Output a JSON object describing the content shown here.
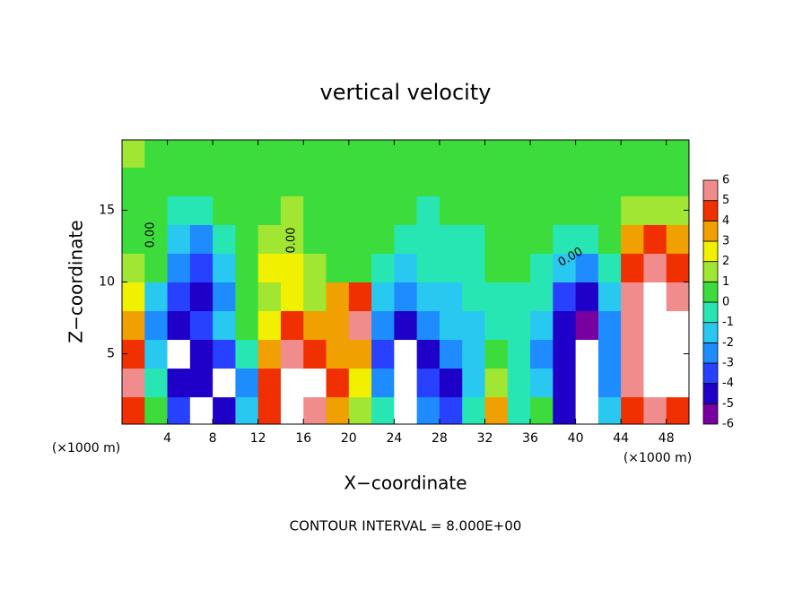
{
  "chart_data": {
    "type": "contour",
    "title": "vertical velocity",
    "xlabel": "X−coordinate",
    "ylabel": "Z−coordinate",
    "x_unit_label": "(×1000 m)",
    "footer": "CONTOUR INTERVAL = 8.000E+00",
    "contour_label": "0.00",
    "x": [
      1,
      3,
      5,
      7,
      9,
      11,
      13,
      15,
      17,
      19,
      21,
      23,
      25,
      27,
      29,
      31,
      33,
      35,
      37,
      39,
      41,
      43,
      45,
      47,
      49
    ],
    "y": [
      1,
      3,
      5,
      7,
      9,
      11,
      13,
      15,
      17,
      19
    ],
    "z": [
      [
        4,
        0,
        -4,
        -7,
        -5,
        -2,
        4,
        7,
        5,
        3,
        1,
        -1,
        -7,
        -3,
        -4,
        -1,
        3,
        -1,
        0,
        -5,
        -7,
        -2,
        4,
        5,
        4
      ],
      [
        5,
        -1,
        -5,
        -5,
        -7,
        -3,
        4,
        7,
        7,
        4,
        2,
        -3,
        -7,
        -4,
        -5,
        -2,
        1,
        -1,
        -2,
        -5,
        -7,
        -3,
        5,
        7,
        7
      ],
      [
        4,
        -2,
        -7,
        -5,
        -4,
        -1,
        3,
        5.5,
        4,
        3,
        3,
        -4,
        -7,
        -5,
        -3,
        -2,
        0,
        -1,
        -3,
        -5,
        -7,
        -3,
        5,
        7,
        7
      ],
      [
        3,
        -3,
        -5,
        -4,
        -2,
        0,
        2,
        4,
        3,
        3,
        5,
        -3,
        -5,
        -3,
        -2,
        -2,
        -1,
        -1,
        -2,
        -5,
        -5.5,
        -3,
        5,
        7,
        7
      ],
      [
        2,
        -2,
        -4,
        -5,
        -3,
        0.5,
        1,
        2,
        1,
        3,
        4,
        -2,
        -3,
        -2,
        -2,
        -1,
        -1,
        -1,
        -1,
        -4,
        -5,
        -2,
        5,
        7,
        5.5
      ],
      [
        1,
        0.5,
        -3,
        -4,
        -2,
        0.5,
        2,
        2,
        1,
        0.5,
        0.5,
        -1,
        -2,
        -1,
        -1,
        -1,
        0.5,
        0.5,
        -1,
        -2,
        -3,
        -1,
        4,
        5.5,
        4
      ],
      [
        0.5,
        0.5,
        -2,
        -3,
        -1,
        0.5,
        1,
        1,
        0.5,
        0.5,
        0.5,
        0.5,
        -1,
        -1,
        -1,
        -1,
        0.5,
        0.5,
        0.5,
        -1,
        -1,
        0.5,
        3,
        4,
        3
      ],
      [
        0.5,
        0.5,
        -1,
        -1,
        0.5,
        0.5,
        0.5,
        1,
        0.5,
        0.5,
        0.5,
        0.5,
        0.5,
        -1,
        0.5,
        0.5,
        0.5,
        0.5,
        0.5,
        0.5,
        0.5,
        0.5,
        1,
        1,
        1
      ],
      [
        0.5,
        0.5,
        0.5,
        0.5,
        0.5,
        0.5,
        0.5,
        0.5,
        0.5,
        0.5,
        0.5,
        0.5,
        0.5,
        0.5,
        0.5,
        0.5,
        0.5,
        0.5,
        0.5,
        0.5,
        0.5,
        0.5,
        0.5,
        0.5,
        0.5
      ],
      [
        1,
        0.5,
        0.5,
        0.5,
        0.5,
        0.5,
        0.5,
        0.5,
        0.5,
        0.5,
        0.5,
        0.5,
        0.5,
        0.5,
        0.5,
        0.5,
        0.5,
        0.5,
        0.5,
        0.5,
        0.5,
        0.5,
        0.5,
        0.5,
        0.5
      ]
    ],
    "xlim": [
      0,
      50
    ],
    "ylim": [
      0.1,
      19.9
    ],
    "xticks": [
      4,
      8,
      12,
      16,
      20,
      24,
      28,
      32,
      36,
      40,
      44,
      48
    ],
    "yticks": [
      5,
      10,
      15
    ],
    "colorbar": {
      "ticks": [
        -6,
        -5,
        -4,
        -3,
        -2,
        -1,
        0,
        1,
        2,
        3,
        4,
        5,
        6
      ],
      "colors": [
        "#7800a0",
        "#1e00c8",
        "#2840ff",
        "#1e8cff",
        "#28c8f0",
        "#28e6b4",
        "#3cdc3c",
        "#a0e632",
        "#f0f000",
        "#f0a000",
        "#f03000",
        "#f08c8c"
      ]
    },
    "outside_color": "#ffffff"
  }
}
